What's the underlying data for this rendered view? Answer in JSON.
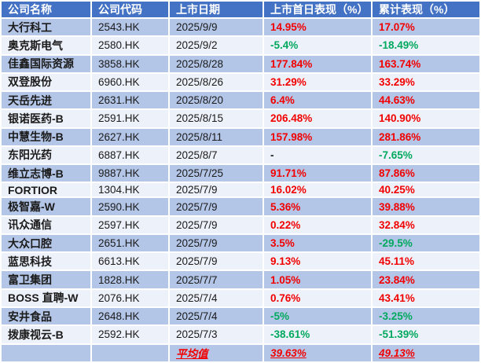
{
  "colors": {
    "header_bg": "#4472C4",
    "header_text": "#FFFFFF",
    "band_odd": "#B4C6E7",
    "band_even": "#EDF1F9",
    "positive": "#F20000",
    "negative": "#00A95E",
    "neutral": "#1A1A1A",
    "average": "#F20000"
  },
  "chart_data": {
    "type": "table",
    "columns": [
      "公司名称",
      "公司代码",
      "上市日期",
      "上市首日表现（%）",
      "累计表现（%）"
    ],
    "rows": [
      {
        "name": "大行科工",
        "code": "2543.HK",
        "date": "2025/9/9",
        "first_day": "14.95%",
        "first_day_color": "positive",
        "cumulative": "17.07%",
        "cumulative_color": "positive"
      },
      {
        "name": "奥克斯电气",
        "code": "2580.HK",
        "date": "2025/9/2",
        "first_day": "-5.4%",
        "first_day_color": "negative",
        "cumulative": "-18.49%",
        "cumulative_color": "negative"
      },
      {
        "name": "佳鑫国际资源",
        "code": "3858.HK",
        "date": "2025/8/28",
        "first_day": "177.84%",
        "first_day_color": "positive",
        "cumulative": "163.74%",
        "cumulative_color": "positive"
      },
      {
        "name": "双登股份",
        "code": "6960.HK",
        "date": "2025/8/26",
        "first_day": "31.29%",
        "first_day_color": "positive",
        "cumulative": "33.29%",
        "cumulative_color": "positive"
      },
      {
        "name": "天岳先进",
        "code": "2631.HK",
        "date": "2025/8/20",
        "first_day": "6.4%",
        "first_day_color": "positive",
        "cumulative": "44.63%",
        "cumulative_color": "positive"
      },
      {
        "name": "银诺医药-B",
        "code": "2591.HK",
        "date": "2025/8/15",
        "first_day": "206.48%",
        "first_day_color": "positive",
        "cumulative": "140.90%",
        "cumulative_color": "positive"
      },
      {
        "name": "中慧生物-B",
        "code": "2627.HK",
        "date": "2025/8/11",
        "first_day": "157.98%",
        "first_day_color": "positive",
        "cumulative": "281.86%",
        "cumulative_color": "positive"
      },
      {
        "name": "东阳光药",
        "code": "6887.HK",
        "date": "2025/8/7",
        "first_day": "-",
        "first_day_color": "neutral",
        "cumulative": "-7.65%",
        "cumulative_color": "negative"
      },
      {
        "name": "维立志博-B",
        "code": "9887.HK",
        "date": "2025/7/25",
        "first_day": "91.71%",
        "first_day_color": "positive",
        "cumulative": "87.86%",
        "cumulative_color": "positive"
      },
      {
        "name": "FORTIOR",
        "code": "1304.HK",
        "date": "2025/7/9",
        "first_day": "16.02%",
        "first_day_color": "positive",
        "cumulative": "40.25%",
        "cumulative_color": "positive"
      },
      {
        "name": "极智嘉-W",
        "code": "2590.HK",
        "date": "2025/7/9",
        "first_day": "5.36%",
        "first_day_color": "positive",
        "cumulative": "39.88%",
        "cumulative_color": "positive"
      },
      {
        "name": "讯众通信",
        "code": "2597.HK",
        "date": "2025/7/9",
        "first_day": "0.22%",
        "first_day_color": "positive",
        "cumulative": "32.84%",
        "cumulative_color": "positive"
      },
      {
        "name": "大众口腔",
        "code": "2651.HK",
        "date": "2025/7/9",
        "first_day": "3.5%",
        "first_day_color": "positive",
        "cumulative": "-29.5%",
        "cumulative_color": "negative"
      },
      {
        "name": "蓝思科技",
        "code": "6613.HK",
        "date": "2025/7/9",
        "first_day": "9.13%",
        "first_day_color": "positive",
        "cumulative": "45.11%",
        "cumulative_color": "positive"
      },
      {
        "name": "富卫集团",
        "code": "1828.HK",
        "date": "2025/7/7",
        "first_day": "1.05%",
        "first_day_color": "positive",
        "cumulative": "23.84%",
        "cumulative_color": "positive"
      },
      {
        "name": "BOSS 直聘-W",
        "code": "2076.HK",
        "date": "2025/7/4",
        "first_day": "0.76%",
        "first_day_color": "positive",
        "cumulative": "43.41%",
        "cumulative_color": "positive"
      },
      {
        "name": "安井食品",
        "code": "2648.HK",
        "date": "2025/7/4",
        "first_day": "-5%",
        "first_day_color": "negative",
        "cumulative": "-3.25%",
        "cumulative_color": "negative"
      },
      {
        "name": "拨康视云-B",
        "code": "2592.HK",
        "date": "2025/7/3",
        "first_day": "-38.61%",
        "first_day_color": "negative",
        "cumulative": "-51.39%",
        "cumulative_color": "negative"
      }
    ],
    "average_row": {
      "label": "平均值",
      "first_day": "39.63%",
      "cumulative": "49.13%",
      "color": "average"
    }
  }
}
